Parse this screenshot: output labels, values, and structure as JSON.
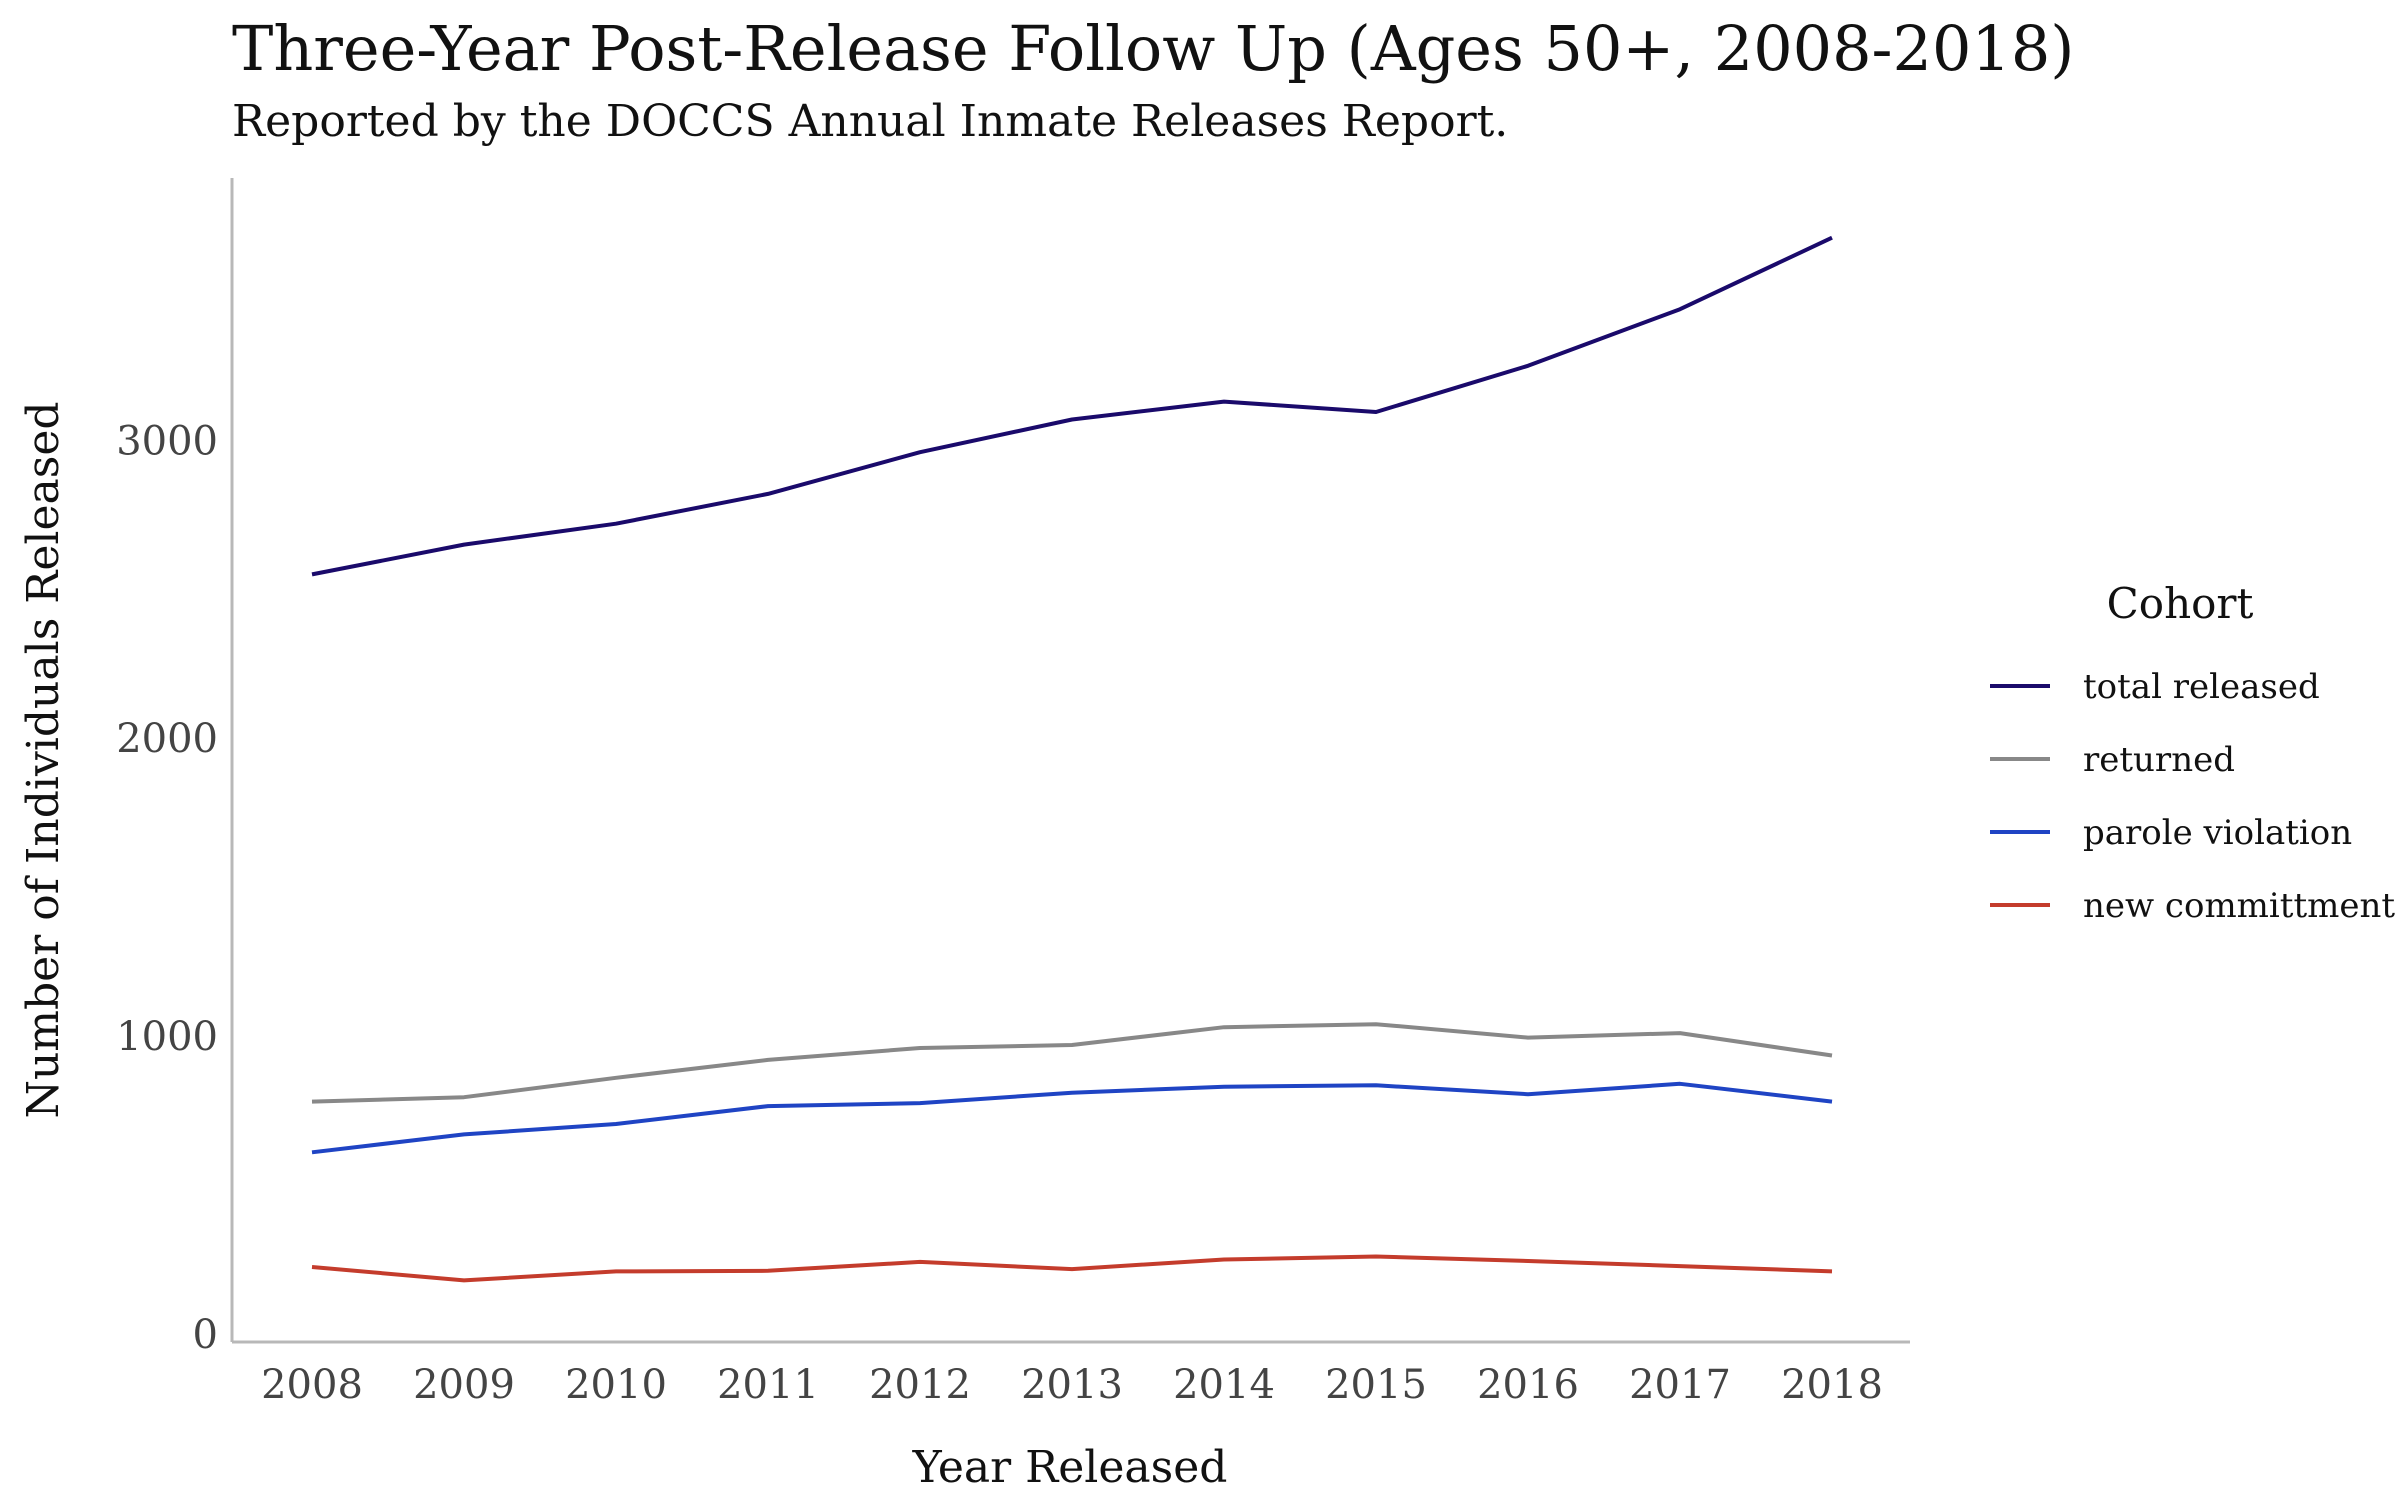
{
  "chart_data": {
    "type": "line",
    "title": "Three-Year Post-Release Follow Up (Ages 50+, 2008-2018)",
    "subtitle": "Reported by the DOCCS Annual Inmate Releases Report.",
    "xlabel": "Year Released",
    "ylabel": "Number of Individuals Released",
    "x": [
      "2008",
      "2009",
      "2010",
      "2011",
      "2012",
      "2013",
      "2014",
      "2015",
      "2016",
      "2017",
      "2018"
    ],
    "y_ticks": [
      "0",
      "1000",
      "2000",
      "3000"
    ],
    "ylim": [
      0,
      3800
    ],
    "grid": false,
    "legend": {
      "title": "Cohort",
      "position": "right"
    },
    "series": [
      {
        "name": "total released",
        "color": "#1a0a6b",
        "values": [
          2550,
          2650,
          2720,
          2820,
          2960,
          3070,
          3130,
          3095,
          3250,
          3440,
          3680
        ]
      },
      {
        "name": "returned",
        "color": "#888888",
        "values": [
          780,
          795,
          860,
          920,
          960,
          970,
          1030,
          1040,
          995,
          1010,
          935
        ]
      },
      {
        "name": "parole violation",
        "color": "#1f44c4",
        "values": [
          610,
          670,
          705,
          765,
          775,
          810,
          830,
          835,
          805,
          840,
          780
        ]
      },
      {
        "name": "new committment",
        "color": "#c43c2c",
        "values": [
          225,
          180,
          210,
          212,
          242,
          218,
          250,
          260,
          245,
          228,
          210
        ]
      }
    ]
  }
}
